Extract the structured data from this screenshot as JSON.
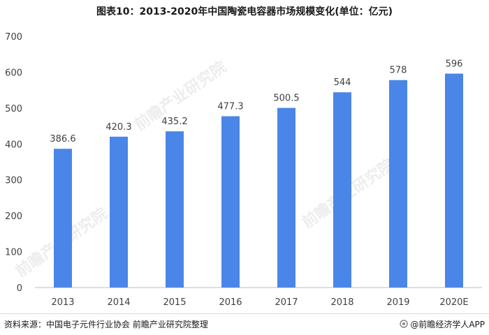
{
  "title": "图表10：2013-2020年中国陶瓷电容器市场规模变化(单位：亿元)",
  "footer": {
    "source": "资料来源：中国电子元件行业协会 前瞻产业研究院整理",
    "brand": "@前瞻经济学人APP"
  },
  "watermark": "前瞻产业研究院",
  "colors": {
    "bar": "#4a86e8",
    "axis": "#bfbfbf",
    "text": "#404040"
  },
  "chart_data": {
    "type": "bar",
    "title": "图表10：2013-2020年中国陶瓷电容器市场规模变化(单位：亿元)",
    "categories": [
      "2013",
      "2014",
      "2015",
      "2016",
      "2017",
      "2018",
      "2019",
      "2020E"
    ],
    "values": [
      386.6,
      420.3,
      435.2,
      477.3,
      500.5,
      544,
      578,
      596
    ],
    "value_labels": [
      "386.6",
      "420.3",
      "435.2",
      "477.3",
      "500.5",
      "544",
      "578",
      "596"
    ],
    "ylim": [
      0,
      700
    ],
    "yticks": [
      0,
      100,
      200,
      300,
      400,
      500,
      600,
      700
    ],
    "xlabel": "",
    "ylabel": "",
    "grid": false,
    "legend": "none"
  }
}
